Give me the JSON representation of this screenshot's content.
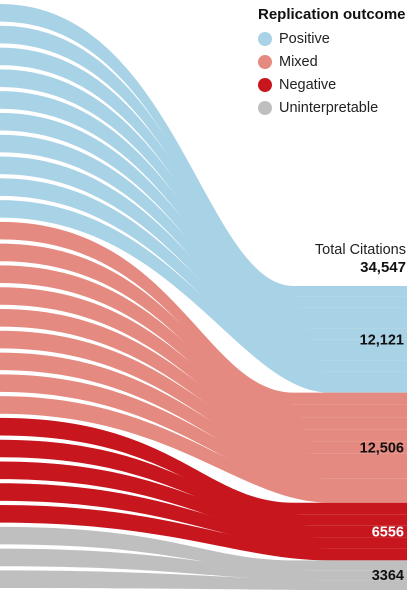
{
  "legend": {
    "title": "Replication outcome",
    "items": [
      {
        "label": "Positive",
        "color": "#a8d2e6"
      },
      {
        "label": "Mixed",
        "color": "#e58a80"
      },
      {
        "label": "Negative",
        "color": "#c8161e"
      },
      {
        "label": "Uninterpretable",
        "color": "#bfbfc0"
      }
    ]
  },
  "total": {
    "label": "Total Citations",
    "value": "34,547"
  },
  "chart_data": {
    "type": "sankey",
    "title": "",
    "total": 34547,
    "nodes": [
      {
        "outcome": "Positive",
        "value": 12121,
        "label": "12,121",
        "color": "#a8d2e6",
        "label_color": "#111111",
        "source_streams": 10
      },
      {
        "outcome": "Mixed",
        "value": 12506,
        "label": "12,506",
        "color": "#e58a80",
        "label_color": "#111111",
        "source_streams": 9
      },
      {
        "outcome": "Negative",
        "value": 6556,
        "label": "6556",
        "color": "#c8161e",
        "label_color": "#ffffff",
        "source_streams": 5
      },
      {
        "outcome": "Uninterpretable",
        "value": 3364,
        "label": "3364",
        "color": "#bfbfc0",
        "label_color": "#111111",
        "source_streams": 3
      }
    ]
  }
}
